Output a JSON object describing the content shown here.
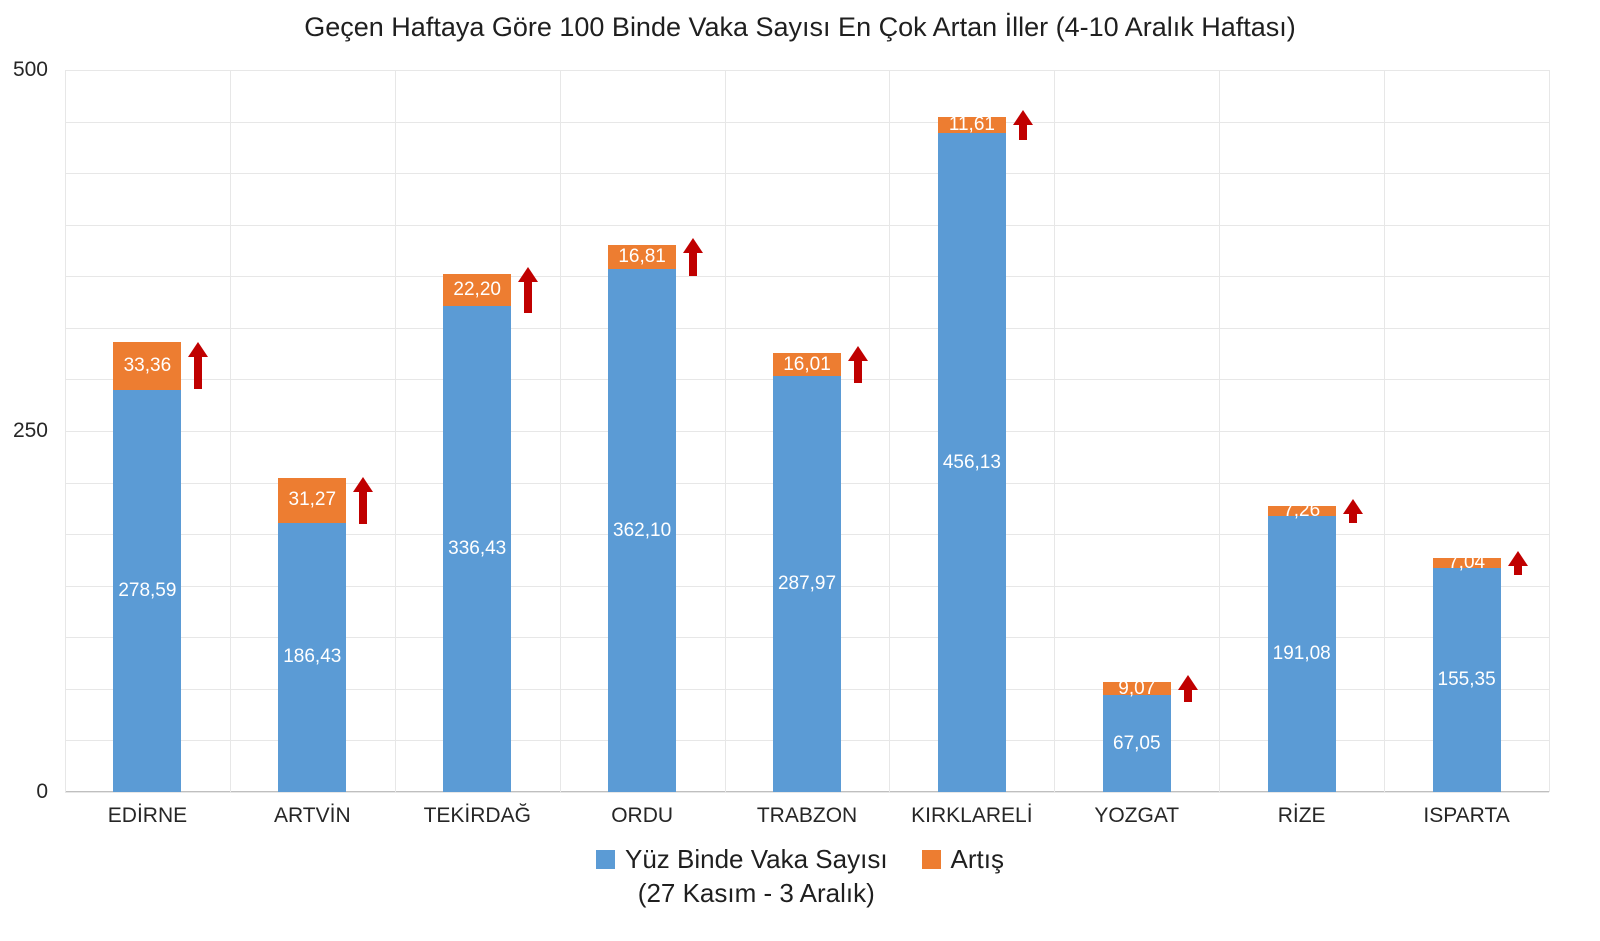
{
  "title": "Geçen Haftaya Göre 100 Binde Vaka Sayısı En Çok Artan İller (4-10 Aralık Haftası)",
  "chart_data": {
    "type": "bar",
    "stacked": true,
    "title": "Geçen Haftaya Göre 100 Binde Vaka Sayısı En Çok Artan İller (4-10 Aralık Haftası)",
    "categories": [
      "EDİRNE",
      "ARTVİN",
      "TEKİRDAĞ",
      "ORDU",
      "TRABZON",
      "KIRKLARELİ",
      "YOZGAT",
      "RİZE",
      "ISPARTA"
    ],
    "series": [
      {
        "name": "Yüz Binde Vaka Sayısı (27 Kasım - 3 Aralık)",
        "color": "#5B9BD5",
        "values": [
          278.59,
          186.43,
          336.43,
          362.1,
          287.97,
          456.13,
          67.05,
          191.08,
          155.35
        ],
        "labels": [
          "278,59",
          "186,43",
          "336,43",
          "362,10",
          "287,97",
          "456,13",
          "67,05",
          "191,08",
          "155,35"
        ]
      },
      {
        "name": "Artış",
        "color": "#ED7D31",
        "values": [
          33.36,
          31.27,
          22.2,
          16.81,
          16.01,
          11.61,
          9.07,
          7.26,
          7.04
        ],
        "labels": [
          "33,36",
          "31,27",
          "22,20",
          "16,81",
          "16,01",
          "11,61",
          "9,07",
          "7,26",
          "7,04"
        ]
      }
    ],
    "xlabel": "",
    "ylabel": "",
    "ylim": [
      0,
      500
    ],
    "yticks": [
      0,
      250,
      500
    ],
    "ytick_labels": [
      "0",
      "250",
      "500"
    ],
    "grid": {
      "horizontal_intervals": 14,
      "vertical_at_category_boundaries": true,
      "color": "#E7E7E7"
    },
    "legend": {
      "position": "bottom-center",
      "entries": [
        {
          "label_lines": [
            "Yüz Binde Vaka Sayısı",
            "(27 Kasım - 3 Aralık)"
          ],
          "color": "#5B9BD5"
        },
        {
          "label_lines": [
            "Artış"
          ],
          "color": "#ED7D31"
        }
      ]
    },
    "annotations": {
      "increase_arrow_color": "#C00000",
      "increase_arrow_meaning": "weekly increase indicator next to each orange segment"
    },
    "colors": {
      "base_bar": "#5B9BD5",
      "increase_bar": "#ED7D31",
      "arrow": "#C00000",
      "bar_value_text": "#FFFFFF",
      "axis_text": "#262626",
      "title_text": "#1F1F1F"
    }
  }
}
